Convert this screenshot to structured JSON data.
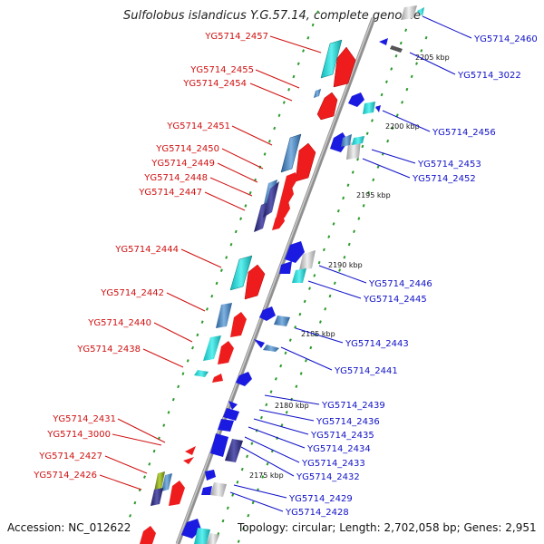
{
  "title": "Sulfolobus islandicus Y.G.57.14, complete genome",
  "footer": {
    "accession": "Accession: NC_012622",
    "topology": "Topology: circular; Length: 2,702,058 bp; Genes: 2,951"
  },
  "colors": {
    "left_label": "#d01010",
    "right_label": "#1010c8",
    "axis": "#888888",
    "tick": "#2a9a2a"
  },
  "kbp_marks": [
    {
      "label": "2205 kbp"
    },
    {
      "label": "2200 kbp"
    },
    {
      "label": "2195 kbp"
    },
    {
      "label": "2190 kbp"
    },
    {
      "label": "2185 kbp"
    },
    {
      "label": "2180 kbp"
    },
    {
      "label": "2175 kbp"
    }
  ],
  "left_genes": [
    "YG5714_2457",
    "YG5714_2455",
    "YG5714_2454",
    "YG5714_2451",
    "YG5714_2450",
    "YG5714_2449",
    "YG5714_2448",
    "YG5714_2447",
    "YG5714_2444",
    "YG5714_2442",
    "YG5714_2440",
    "YG5714_2438",
    "YG5714_2431",
    "YG5714_3000",
    "YG5714_2427",
    "YG5714_2426"
  ],
  "right_genes": [
    "YG5714_2460",
    "YG5714_3022",
    "YG5714_2456",
    "YG5714_2453",
    "YG5714_2452",
    "YG5714_2446",
    "YG5714_2445",
    "YG5714_2443",
    "YG5714_2441",
    "YG5714_2439",
    "YG5714_2436",
    "YG5714_2435",
    "YG5714_2434",
    "YG5714_2433",
    "YG5714_2432",
    "YG5714_2429",
    "YG5714_2428"
  ]
}
